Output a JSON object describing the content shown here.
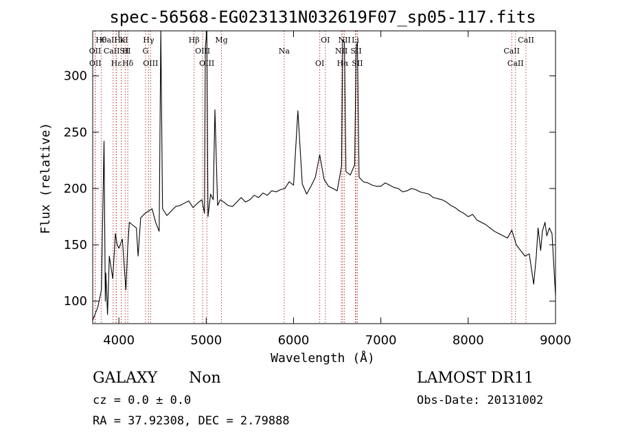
{
  "chart_data": {
    "type": "line",
    "title": "spec-56568-EG023131N032619F07_sp05-117.fits",
    "xlabel": "Wavelength (Å)",
    "ylabel": "Flux (relative)",
    "xlim": [
      3700,
      9000
    ],
    "ylim": [
      80,
      340
    ],
    "xticks": [
      4000,
      5000,
      6000,
      7000,
      8000,
      9000
    ],
    "xtick_labels": [
      "4000",
      "5000",
      "6000",
      "7000",
      "8000",
      "9000"
    ],
    "yticks": [
      100,
      150,
      200,
      250,
      300
    ],
    "ytick_labels": [
      "100",
      "150",
      "200",
      "250",
      "300"
    ],
    "grid": false,
    "series": [
      {
        "x": [
          3700,
          3760,
          3800,
          3830,
          3845,
          3850,
          3870,
          3890,
          3930,
          3960,
          3980,
          4000,
          4040,
          4080,
          4101,
          4120,
          4150,
          4200,
          4220,
          4250,
          4300,
          4340,
          4380,
          4420,
          4461,
          4480,
          4500,
          4550,
          4600,
          4650,
          4700,
          4750,
          4800,
          4850,
          4900,
          4950,
          4980,
          4990,
          5007,
          5020,
          5050,
          5080,
          5100,
          5130,
          5160,
          5200,
          5250,
          5300,
          5350,
          5400,
          5450,
          5500,
          5550,
          5600,
          5650,
          5700,
          5750,
          5800,
          5850,
          5900,
          5950,
          6000,
          6050,
          6100,
          6150,
          6200,
          6250,
          6300,
          6350,
          6400,
          6450,
          6500,
          6550,
          6563,
          6583,
          6600,
          6650,
          6700,
          6717,
          6731,
          6750,
          6800,
          6850,
          6900,
          6950,
          7000,
          7050,
          7100,
          7150,
          7200,
          7250,
          7300,
          7350,
          7400,
          7450,
          7500,
          7550,
          7600,
          7650,
          7700,
          7750,
          7800,
          7850,
          7900,
          7950,
          8000,
          8050,
          8100,
          8150,
          8200,
          8250,
          8300,
          8350,
          8400,
          8450,
          8500,
          8550,
          8600,
          8650,
          8700,
          8750,
          8780,
          8800,
          8830,
          8850,
          8880,
          8900,
          8930,
          8960,
          9000
        ],
        "y": [
          83,
          95,
          110,
          242,
          100,
          125,
          88,
          140,
          120,
          160,
          150,
          147,
          155,
          110,
          148,
          170,
          168,
          165,
          140,
          174,
          178,
          180,
          182,
          170,
          162,
          345,
          182,
          176,
          180,
          184,
          185,
          187,
          189,
          183,
          187,
          190,
          178,
          325,
          340,
          175,
          195,
          190,
          270,
          185,
          190,
          188,
          185,
          184,
          188,
          192,
          188,
          190,
          194,
          192,
          196,
          194,
          198,
          197,
          199,
          200,
          206,
          203,
          269,
          204,
          195,
          202,
          210,
          230,
          208,
          202,
          200,
          198,
          220,
          332,
          330,
          215,
          212,
          221,
          325,
          330,
          210,
          206,
          205,
          203,
          202,
          202,
          205,
          203,
          201,
          200,
          197,
          198,
          200,
          199,
          197,
          196,
          195,
          192,
          191,
          190,
          188,
          185,
          183,
          180,
          178,
          175,
          177,
          172,
          170,
          168,
          165,
          162,
          160,
          158,
          156,
          163,
          150,
          145,
          140,
          142,
          115,
          140,
          165,
          145,
          162,
          170,
          158,
          165,
          160,
          105
        ]
      }
    ],
    "line_markers": [
      {
        "label": "Hθ",
        "x": 3797
      },
      {
        "label": "OII",
        "x": 3727
      },
      {
        "label": "OII",
        "x": 3729
      },
      {
        "label": "CaII K",
        "x": 3934
      },
      {
        "label": "CaII H",
        "x": 3969
      },
      {
        "label": "Hε",
        "x": 3970
      },
      {
        "label": "HeI",
        "x": 4026
      },
      {
        "label": "SII",
        "x": 4072
      },
      {
        "label": "Hδ",
        "x": 4102
      },
      {
        "label": "Hγ",
        "x": 4340
      },
      {
        "label": "G",
        "x": 4305
      },
      {
        "label": "OIII",
        "x": 4363
      },
      {
        "label": "Hβ",
        "x": 4861
      },
      {
        "label": "OIII",
        "x": 4959
      },
      {
        "label": "OIII",
        "x": 5007
      },
      {
        "label": "Mg",
        "x": 5175
      },
      {
        "label": "Na",
        "x": 5893
      },
      {
        "label": "OI",
        "x": 6300
      },
      {
        "label": "OI",
        "x": 6364
      },
      {
        "label": "NII",
        "x": 6548
      },
      {
        "label": "Hα",
        "x": 6563
      },
      {
        "label": "NII",
        "x": 6583
      },
      {
        "label": "SII",
        "x": 6717
      },
      {
        "label": "SII",
        "x": 6731
      },
      {
        "label": "Li",
        "x": 6708
      },
      {
        "label": "CaII",
        "x": 8498
      },
      {
        "label": "CaII",
        "x": 8542
      },
      {
        "label": "CaII",
        "x": 8662
      }
    ]
  },
  "footer": {
    "class_label": "GALAXY",
    "subclass_label": "Non",
    "survey_label": "LAMOST DR11",
    "cz_text": "cz = 0.0 ± 0.0",
    "obs_date_text": "Obs-Date: 20131002",
    "radec_text": "RA =  37.92308, DEC =   2.79888"
  }
}
